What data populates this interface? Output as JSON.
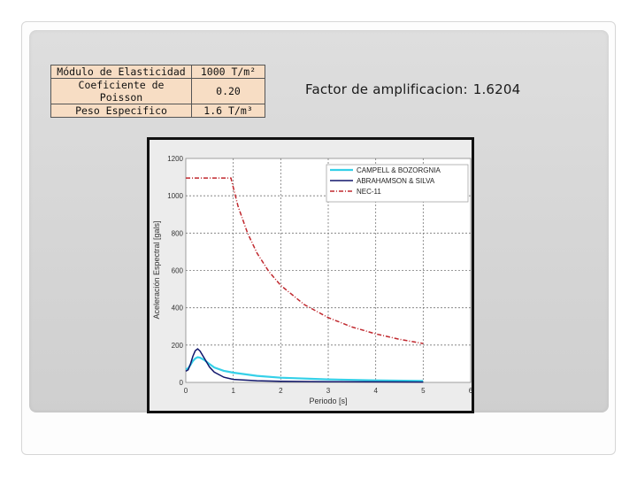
{
  "table": {
    "rows": [
      {
        "label": "Módulo de Elasticidad",
        "value": "1000 T/m²"
      },
      {
        "label": "Coeficiente de Poisson",
        "value": "0.20"
      },
      {
        "label": "Peso Especifico",
        "value": "1.6 T/m³"
      }
    ]
  },
  "factor": {
    "label": "Factor de amplificacion:",
    "value": "1.6204"
  },
  "chart_data": {
    "type": "line",
    "title": "",
    "xlabel": "Periodo [s]",
    "ylabel": "Aceleración Espectral [gals]",
    "xlim": [
      0,
      6
    ],
    "ylim": [
      0,
      1200
    ],
    "xticks": [
      "0",
      "1",
      "2",
      "3",
      "4",
      "5",
      "6"
    ],
    "yticks": [
      "0",
      "200",
      "400",
      "600",
      "800",
      "1000",
      "1200"
    ],
    "grid": true,
    "legend": "top-right",
    "series": [
      {
        "name": "CAMPELL & BOZORGNIA",
        "color": "#35d0e8",
        "x": [
          0,
          0.05,
          0.1,
          0.15,
          0.2,
          0.25,
          0.3,
          0.4,
          0.5,
          0.6,
          0.8,
          1.0,
          1.5,
          2.0,
          3.0,
          4.0,
          5.0
        ],
        "y": [
          70,
          75,
          95,
          115,
          128,
          135,
          133,
          118,
          98,
          80,
          62,
          52,
          35,
          25,
          16,
          11,
          8
        ]
      },
      {
        "name": "ABRAHAMSON & SILVA",
        "color": "#10166b",
        "x": [
          0,
          0.05,
          0.1,
          0.15,
          0.2,
          0.25,
          0.3,
          0.4,
          0.5,
          0.6,
          0.8,
          1.0,
          1.5,
          2.0,
          3.0,
          4.0,
          5.0
        ],
        "y": [
          60,
          68,
          100,
          140,
          170,
          180,
          168,
          125,
          82,
          55,
          28,
          16,
          9,
          6,
          4,
          3,
          2
        ]
      },
      {
        "name": "NEC-11",
        "color": "#c0282e",
        "x": [
          0,
          0.1,
          0.3,
          0.5,
          0.7,
          0.9,
          0.95,
          1.1,
          1.3,
          1.5,
          1.75,
          2.0,
          2.5,
          3.0,
          3.5,
          4.0,
          4.5,
          5.0
        ],
        "y": [
          1095,
          1095,
          1095,
          1095,
          1095,
          1095,
          1095,
          945,
          800,
          693,
          594,
          520,
          416,
          347,
          297,
          260,
          231,
          208
        ]
      }
    ]
  }
}
